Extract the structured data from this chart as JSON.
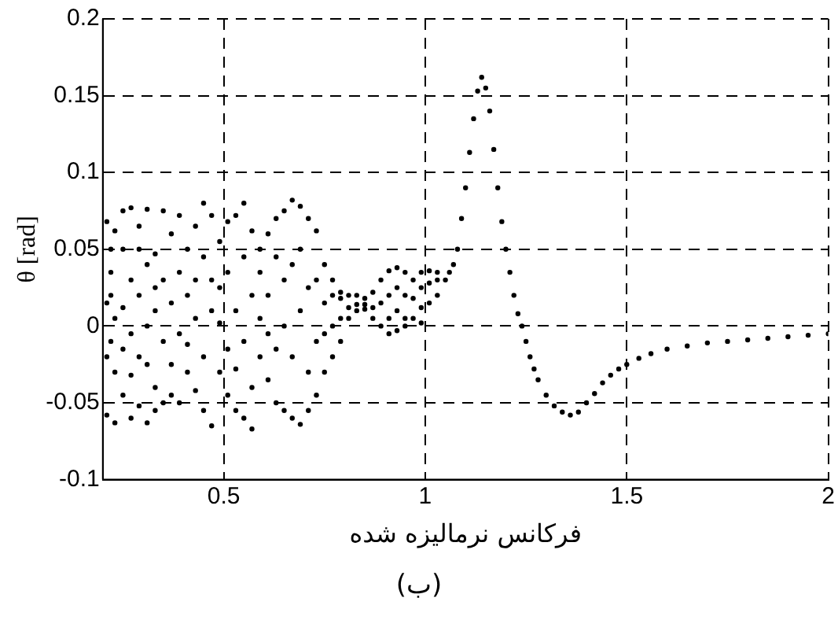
{
  "chart_data": {
    "type": "scatter",
    "xlabel": "فرکانس نرمالیزه شده",
    "ylabel": "θ [rad]",
    "annotations": [
      "(ب)"
    ],
    "xlim": [
      0.2,
      2
    ],
    "ylim": [
      -0.1,
      0.2
    ],
    "xticks": [
      {
        "value": 0.2,
        "label": null
      },
      0.5,
      1,
      1.5,
      2
    ],
    "yticks": [
      -0.1,
      -0.05,
      0,
      0.05,
      0.1,
      0.15,
      0.2
    ],
    "grid": true,
    "legend": false,
    "marker": "circle",
    "series": [
      {
        "color": "#000000",
        "x": [
          0.21,
          0.21,
          0.21,
          0.21,
          0.22,
          0.22,
          0.22,
          0.22,
          0.23,
          0.23,
          0.23,
          0.23,
          0.25,
          0.25,
          0.25,
          0.25,
          0.25,
          0.27,
          0.27,
          0.27,
          0.27,
          0.27,
          0.29,
          0.29,
          0.29,
          0.29,
          0.29,
          0.31,
          0.31,
          0.31,
          0.31,
          0.31,
          0.33,
          0.33,
          0.33,
          0.33,
          0.33,
          0.35,
          0.35,
          0.35,
          0.35,
          0.37,
          0.37,
          0.37,
          0.37,
          0.39,
          0.39,
          0.39,
          0.39,
          0.41,
          0.41,
          0.41,
          0.41,
          0.43,
          0.43,
          0.43,
          0.43,
          0.45,
          0.45,
          0.45,
          0.45,
          0.47,
          0.47,
          0.47,
          0.47,
          0.49,
          0.49,
          0.49,
          0.49,
          0.51,
          0.51,
          0.51,
          0.51,
          0.53,
          0.53,
          0.53,
          0.53,
          0.55,
          0.55,
          0.55,
          0.55,
          0.57,
          0.57,
          0.57,
          0.57,
          0.59,
          0.59,
          0.59,
          0.59,
          0.61,
          0.61,
          0.61,
          0.61,
          0.63,
          0.63,
          0.63,
          0.63,
          0.65,
          0.65,
          0.65,
          0.65,
          0.67,
          0.67,
          0.67,
          0.67,
          0.69,
          0.69,
          0.69,
          0.69,
          0.71,
          0.71,
          0.71,
          0.71,
          0.73,
          0.73,
          0.73,
          0.73,
          0.75,
          0.75,
          0.75,
          0.75,
          0.77,
          0.77,
          0.77,
          0.77,
          0.79,
          0.79,
          0.79,
          0.79,
          0.81,
          0.81,
          0.81,
          0.83,
          0.83,
          0.83,
          0.85,
          0.85,
          0.85,
          0.87,
          0.87,
          0.87,
          0.89,
          0.89,
          0.89,
          0.91,
          0.91,
          0.91,
          0.91,
          0.93,
          0.93,
          0.93,
          0.93,
          0.95,
          0.95,
          0.95,
          0.95,
          0.97,
          0.97,
          0.97,
          0.99,
          0.99,
          0.99,
          0.99,
          1.01,
          1.01,
          1.01,
          1.03,
          1.03,
          1.03,
          1.05,
          1.06,
          1.07,
          1.08,
          1.09,
          1.1,
          1.11,
          1.12,
          1.13,
          1.14,
          1.15,
          1.16,
          1.17,
          1.18,
          1.19,
          1.2,
          1.21,
          1.22,
          1.23,
          1.24,
          1.25,
          1.26,
          1.27,
          1.28,
          1.3,
          1.32,
          1.34,
          1.36,
          1.38,
          1.4,
          1.42,
          1.44,
          1.46,
          1.48,
          1.5,
          1.53,
          1.56,
          1.6,
          1.65,
          1.7,
          1.75,
          1.8,
          1.85,
          1.9,
          1.95,
          2.0
        ],
        "values": [
          0.068,
          0.015,
          -0.02,
          -0.058,
          0.05,
          0.02,
          -0.01,
          0.035,
          0.062,
          -0.03,
          0.005,
          -0.063,
          0.05,
          0.075,
          0.012,
          -0.045,
          -0.015,
          0.077,
          0.03,
          -0.005,
          -0.032,
          -0.06,
          0.05,
          0.02,
          -0.02,
          -0.052,
          0.065,
          0.076,
          0.04,
          0,
          -0.025,
          -0.063,
          0.047,
          0.01,
          -0.04,
          0.025,
          -0.055,
          0.075,
          0.03,
          -0.01,
          -0.05,
          0.06,
          0.015,
          -0.025,
          -0.045,
          0.072,
          0.035,
          -0.005,
          -0.05,
          0.05,
          0.02,
          -0.03,
          -0.012,
          0.065,
          0.005,
          -0.042,
          0.03,
          0.08,
          0.045,
          -0.02,
          -0.055,
          0.072,
          0.01,
          -0.065,
          0.03,
          0.055,
          0.002,
          -0.03,
          0.025,
          0.068,
          0.035,
          -0.015,
          -0.045,
          0.072,
          0.01,
          -0.028,
          -0.055,
          0.08,
          0.045,
          -0.01,
          -0.06,
          0.062,
          0.02,
          -0.04,
          -0.067,
          0.035,
          0.005,
          -0.02,
          0.05,
          0.06,
          0.02,
          -0.035,
          -0.005,
          0.045,
          0.07,
          -0.05,
          -0.015,
          0.075,
          0.03,
          -0.055,
          0,
          0.082,
          0.04,
          -0.06,
          -0.02,
          0.078,
          0.05,
          -0.064,
          0.01,
          0.07,
          0.025,
          -0.055,
          -0.03,
          0.062,
          0.03,
          -0.045,
          -0.01,
          0.04,
          0.015,
          -0.03,
          -0.005,
          0.03,
          0.02,
          -0.02,
          0,
          0.022,
          0.018,
          -0.01,
          0.005,
          0.02,
          0.012,
          0.005,
          0.02,
          0.014,
          0.01,
          0.018,
          0.014,
          0.011,
          0.022,
          0.012,
          0.005,
          0.03,
          0.015,
          0,
          0.036,
          0.02,
          0.005,
          -0.005,
          0.038,
          0.025,
          0.01,
          -0.003,
          0.035,
          0.02,
          0.005,
          0,
          0.03,
          0.018,
          0.005,
          0.035,
          0.025,
          0.012,
          0.002,
          0.036,
          0.028,
          0.015,
          0.035,
          0.03,
          0.02,
          0.03,
          0.035,
          0.04,
          0.05,
          0.07,
          0.09,
          0.113,
          0.135,
          0.153,
          0.162,
          0.155,
          0.14,
          0.115,
          0.09,
          0.068,
          0.05,
          0.035,
          0.02,
          0.008,
          0,
          -0.01,
          -0.02,
          -0.028,
          -0.035,
          -0.045,
          -0.052,
          -0.056,
          -0.058,
          -0.056,
          -0.05,
          -0.044,
          -0.037,
          -0.032,
          -0.028,
          -0.025,
          -0.021,
          -0.018,
          -0.015,
          -0.013,
          -0.011,
          -0.01,
          -0.009,
          -0.008,
          -0.007,
          -0.006,
          -0.005
        ]
      }
    ]
  }
}
